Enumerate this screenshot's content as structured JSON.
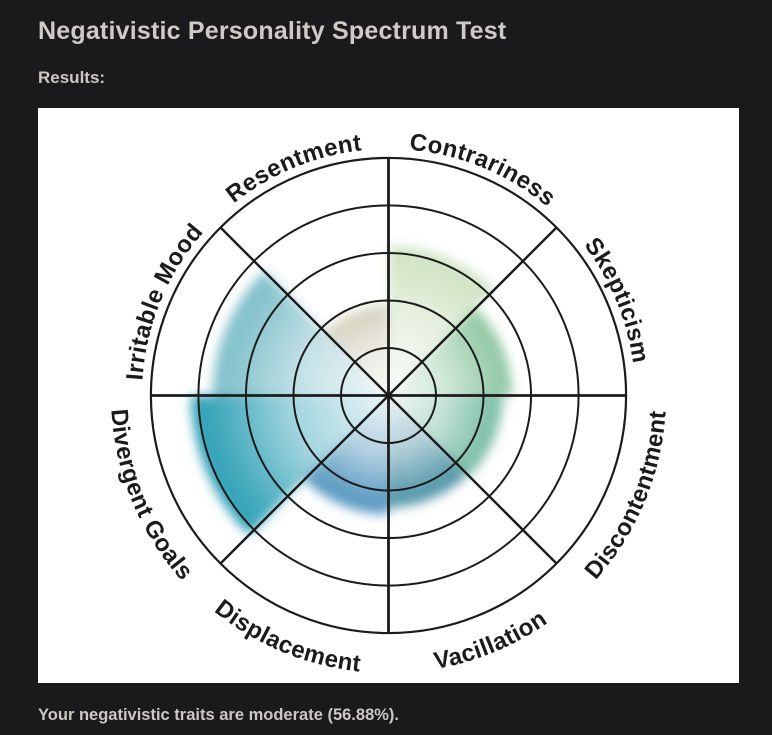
{
  "page": {
    "title": "Negativistic Personality Spectrum Test",
    "results_label": "Results:",
    "summary": "Your negativistic traits are moderate (56.88%)."
  },
  "colors": {
    "page_background": "#1a191b",
    "heading_text": "#cfcac6",
    "body_text": "#ccc7c3",
    "panel_background": "#ffffff",
    "grid": "#1b1b1b",
    "label_text": "#1b1b1b"
  },
  "chart_data": {
    "type": "polar-spectrum",
    "title": "Negativistic Personality Spectrum",
    "overall_pct": 56.88,
    "rings": 5,
    "ring_step_pct": 20,
    "grid_on": true,
    "sectors_clockwise_from_north": [
      {
        "label": "Contrariness",
        "value_pct": 63,
        "color": "#cfe3c2"
      },
      {
        "label": "Skepticism",
        "value_pct": 52,
        "color": "#8fc7a2"
      },
      {
        "label": "Discontentment",
        "value_pct": 48,
        "color": "#7abda4"
      },
      {
        "label": "Vacillation",
        "value_pct": 47,
        "color": "#4f93a6"
      },
      {
        "label": "Displacement",
        "value_pct": 50,
        "color": "#5596bf"
      },
      {
        "label": "Divergent Goals",
        "value_pct": 83,
        "color": "#2d9fb5"
      },
      {
        "label": "Irritable Mood",
        "value_pct": 74,
        "color": "#7fbfca"
      },
      {
        "label": "Resentment",
        "value_pct": 38,
        "color": "#d6d3c0"
      }
    ]
  }
}
